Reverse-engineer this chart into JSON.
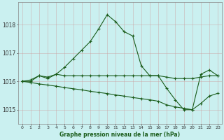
{
  "title": "Graphe pression niveau de la mer (hPa)",
  "background_color": "#caf0f0",
  "grid_color": "#cc9999",
  "line_color": "#1a5c1a",
  "x_labels": [
    "0",
    "1",
    "2",
    "3",
    "4",
    "5",
    "6",
    "7",
    "8",
    "9",
    "10",
    "11",
    "12",
    "13",
    "14",
    "15",
    "16",
    "17",
    "18",
    "19",
    "20",
    "21",
    "22",
    "23"
  ],
  "ylim": [
    1014.5,
    1018.8
  ],
  "yticks": [
    1015,
    1016,
    1017,
    1018
  ],
  "series": {
    "line1": [
      1016.0,
      1016.05,
      1016.2,
      1016.1,
      1016.25,
      1016.5,
      1016.8,
      1017.1,
      1017.4,
      1017.85,
      1018.35,
      1018.1,
      1017.75,
      1017.6,
      1016.55,
      1016.2,
      1016.2,
      1015.75,
      1015.35,
      1015.0,
      1015.0,
      1016.25,
      1016.4,
      1016.2
    ],
    "line2": [
      1016.0,
      1016.0,
      1016.2,
      1016.15,
      1016.25,
      1016.2,
      1016.2,
      1016.2,
      1016.2,
      1016.2,
      1016.2,
      1016.2,
      1016.2,
      1016.2,
      1016.2,
      1016.2,
      1016.2,
      1016.15,
      1016.1,
      1016.1,
      1016.1,
      1016.15,
      1016.2,
      1016.2
    ],
    "line3": [
      1016.0,
      1015.96,
      1015.91,
      1015.87,
      1015.83,
      1015.78,
      1015.74,
      1015.7,
      1015.65,
      1015.61,
      1015.57,
      1015.52,
      1015.48,
      1015.43,
      1015.39,
      1015.35,
      1015.3,
      1015.17,
      1015.1,
      1015.05,
      1015.0,
      1015.22,
      1015.48,
      1015.58
    ]
  }
}
